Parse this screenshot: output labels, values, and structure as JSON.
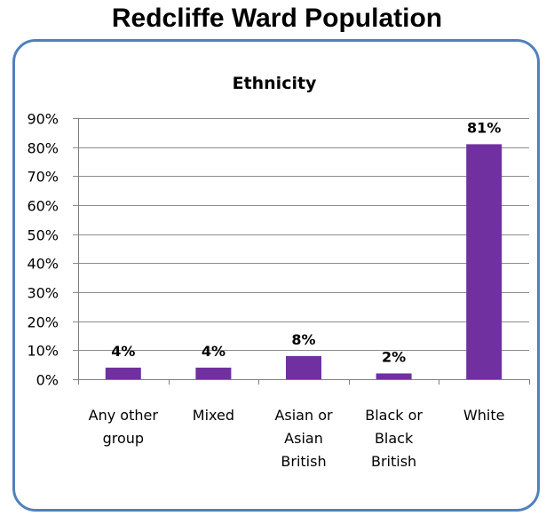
{
  "page_title": "Redcliffe Ward Population",
  "chart_data": {
    "type": "bar",
    "title": "Ethnicity",
    "categories": [
      [
        "Any other",
        "group"
      ],
      [
        "Mixed"
      ],
      [
        "Asian or",
        "Asian",
        "British"
      ],
      [
        "Black or",
        "Black",
        "British"
      ],
      [
        "White"
      ]
    ],
    "values": [
      4,
      4,
      8,
      2,
      81
    ],
    "data_labels": [
      "4%",
      "4%",
      "8%",
      "2%",
      "81%"
    ],
    "ylim": [
      0,
      90
    ],
    "yticks": [
      0,
      10,
      20,
      30,
      40,
      50,
      60,
      70,
      80,
      90
    ],
    "ytick_labels": [
      "0%",
      "10%",
      "20%",
      "30%",
      "40%",
      "50%",
      "60%",
      "70%",
      "80%",
      "90%"
    ],
    "grid": true,
    "legend": "none",
    "bar_color": "#7030a0",
    "xlabel": "",
    "ylabel": ""
  }
}
